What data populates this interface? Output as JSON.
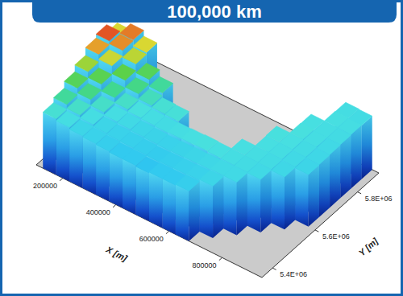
{
  "chart_data": {
    "type": "surface",
    "title": "100,000 km",
    "x_label": "X [m]",
    "y_label": "Y [m]",
    "xlim": [
      100000,
      950000
    ],
    "ylim": [
      5350000,
      5900000
    ],
    "zlim": [
      -6000,
      3000
    ],
    "xticks": [
      200000,
      400000,
      600000,
      800000
    ],
    "yticks": [
      {
        "value": 5400000,
        "label": "5.4E+06"
      },
      {
        "value": 5600000,
        "label": "5.6E+06"
      },
      {
        "value": 5800000,
        "label": "5.8E+06"
      }
    ],
    "x": [
      150000,
      200000,
      250000,
      300000,
      350000,
      400000,
      450000,
      500000,
      550000,
      600000,
      650000,
      700000,
      750000,
      800000,
      850000,
      900000
    ],
    "y": [
      5375000,
      5425000,
      5475000,
      5525000,
      5575000,
      5625000,
      5675000,
      5725000,
      5775000,
      5825000,
      5875000
    ],
    "z": [
      [
        -300,
        -500,
        -700,
        -800,
        -900,
        -1000,
        -1000,
        -1100,
        -1000,
        -1000,
        -900,
        null,
        null,
        null,
        null,
        null
      ],
      [
        200,
        -200,
        -500,
        -700,
        -800,
        -850,
        -900,
        -950,
        -900,
        -850,
        -800,
        -700,
        null,
        null,
        null,
        null
      ],
      [
        900,
        400,
        -200,
        -500,
        -600,
        -700,
        -750,
        -800,
        -750,
        -700,
        -650,
        -600,
        -600,
        null,
        null,
        null
      ],
      [
        1600,
        1000,
        300,
        -200,
        -400,
        -500,
        -550,
        -500,
        -450,
        -400,
        -450,
        -500,
        -550,
        -600,
        null,
        null
      ],
      [
        2400,
        1900,
        1100,
        400,
        -100,
        -300,
        -350,
        null,
        null,
        null,
        null,
        -450,
        -500,
        -550,
        -650,
        null
      ],
      [
        2800,
        2500,
        1800,
        900,
        200,
        null,
        null,
        null,
        null,
        null,
        null,
        null,
        -450,
        -500,
        -600,
        -700
      ],
      [
        2000,
        2600,
        2000,
        null,
        null,
        null,
        null,
        null,
        null,
        null,
        null,
        null,
        -400,
        -450,
        -550,
        -650
      ],
      [
        null,
        null,
        null,
        null,
        null,
        null,
        null,
        null,
        null,
        null,
        null,
        null,
        null,
        -400,
        -500,
        -600
      ],
      [
        null,
        null,
        null,
        null,
        null,
        null,
        null,
        null,
        null,
        null,
        null,
        null,
        null,
        -450,
        -500,
        -550
      ],
      [
        null,
        null,
        null,
        null,
        null,
        null,
        null,
        null,
        null,
        null,
        null,
        null,
        null,
        null,
        -450,
        -500
      ],
      [
        null,
        null,
        null,
        null,
        null,
        null,
        null,
        null,
        null,
        null,
        null,
        null,
        null,
        null,
        -500,
        -550
      ]
    ]
  }
}
